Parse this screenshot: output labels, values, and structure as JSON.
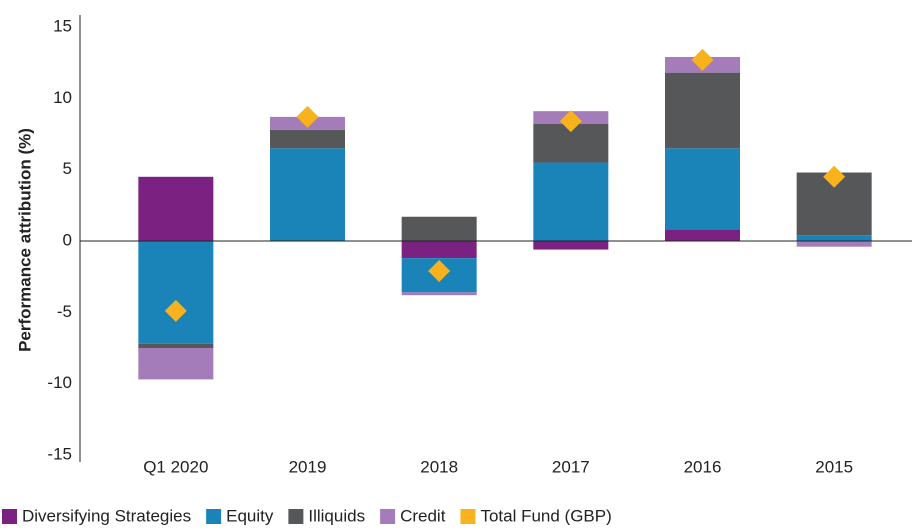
{
  "chart_data": {
    "type": "stacked-bar",
    "y_axis_label": "Performance attribution (%)",
    "categories": [
      "Q1 2020",
      "2019",
      "2018",
      "2017",
      "2016",
      "2015"
    ],
    "series": [
      {
        "name": "Diversifying Strategies",
        "color": "#7b2182",
        "values": [
          4.5,
          0,
          -1.2,
          -0.6,
          0.8,
          0
        ]
      },
      {
        "name": "Equity",
        "color": "#1a84b8",
        "values": [
          -7.2,
          6.5,
          -2.4,
          5.5,
          5.7,
          0.4
        ]
      },
      {
        "name": "Illiquids",
        "color": "#555759",
        "values": [
          -0.3,
          1.3,
          1.7,
          2.7,
          5.3,
          4.4
        ]
      },
      {
        "name": "Credit",
        "color": "#a57cba",
        "values": [
          -2.2,
          0.9,
          -0.2,
          0.9,
          1.1,
          -0.4
        ]
      }
    ],
    "total": {
      "name": "Total Fund (GBP)",
      "color": "#f7b21e",
      "marker": "diamond",
      "values": [
        -4.9,
        8.7,
        -2.1,
        8.4,
        12.7,
        4.5
      ]
    },
    "ylim": [
      -15,
      15
    ],
    "yticks": [
      -15,
      -10,
      -5,
      0,
      5,
      10,
      15
    ],
    "grid": false,
    "legend": "bottom"
  }
}
